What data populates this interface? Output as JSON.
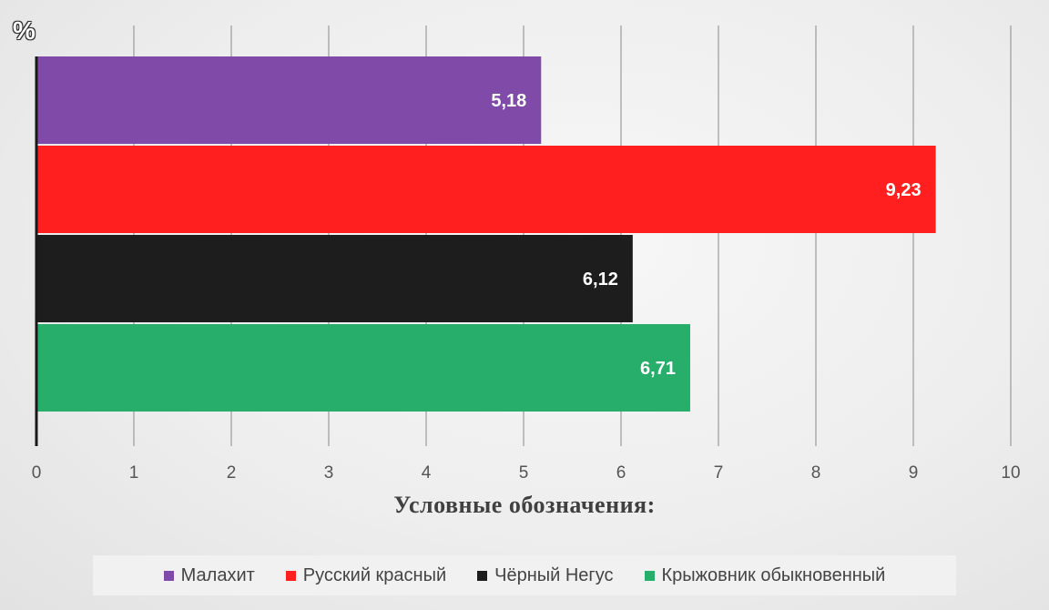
{
  "chart_data": {
    "type": "bar",
    "orientation": "horizontal",
    "unit_label": "%",
    "categories": [
      "Малахит",
      "Русский красный",
      "Чёрный Негус",
      "Крыжовник обыкновенный"
    ],
    "values": [
      5.18,
      9.23,
      6.12,
      6.71
    ],
    "value_labels": [
      "5,18",
      "9,23",
      "6,12",
      "6,71"
    ],
    "colors": [
      "#7f4aa8",
      "#ff1f1f",
      "#1d1d1d",
      "#27ae6b"
    ],
    "xlim": [
      0,
      10
    ],
    "x_ticks": [
      "0",
      "1",
      "2",
      "3",
      "4",
      "5",
      "6",
      "7",
      "8",
      "9",
      "10"
    ],
    "grid": true,
    "legend_title": "Условные обозначения:",
    "legend_position": "bottom"
  }
}
